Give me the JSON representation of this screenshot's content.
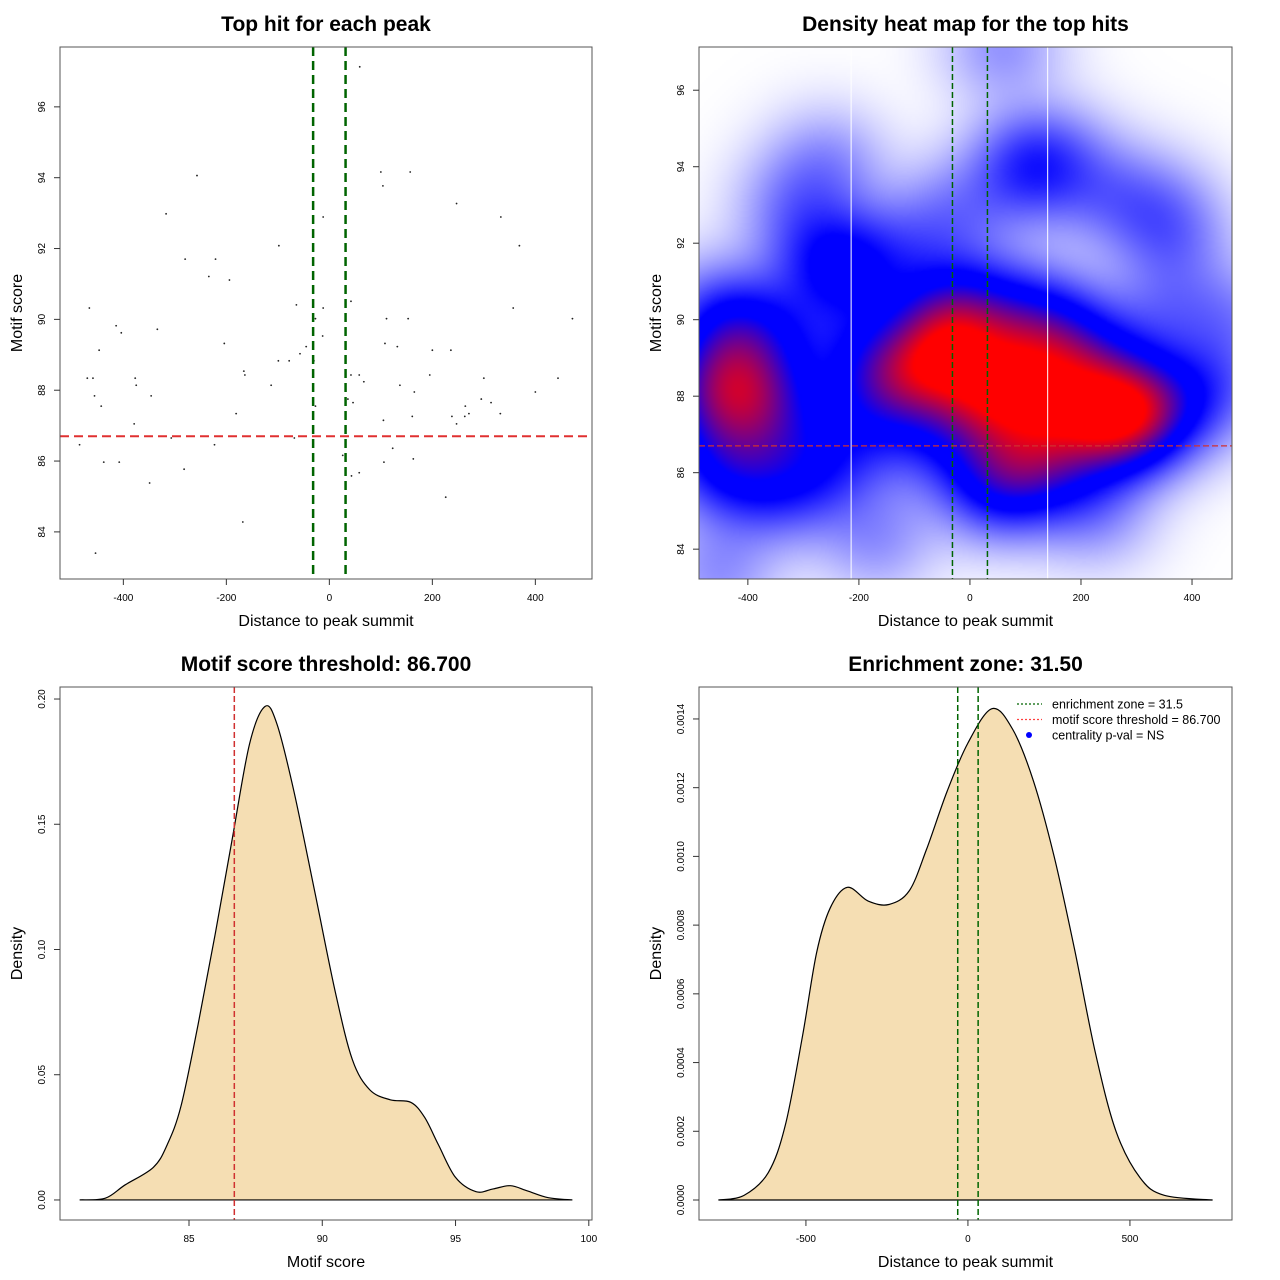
{
  "chart_data": [
    {
      "type": "scatter",
      "title": "Top hit for each peak",
      "xlabel": "Distance to peak summit",
      "ylabel": "Motif score",
      "xlim": [
        -523,
        510
      ],
      "ylim": [
        82.67,
        97.69
      ],
      "xtick_labels": [
        "-400",
        "-200",
        "0",
        "200",
        "400"
      ],
      "ytick_labels": [
        "84",
        "86",
        "88",
        "90",
        "92",
        "94",
        "96"
      ],
      "point_color": "#222222",
      "vlines": {
        "values": [
          -31.5,
          31.5
        ],
        "color": "#006400",
        "style": "dashed"
      },
      "hline": {
        "value": 86.7,
        "color": "#e03030",
        "style": "dashed"
      },
      "points": [
        [
          -257,
          94.06
        ],
        [
          -317,
          92.98
        ],
        [
          -98,
          92.08
        ],
        [
          -280,
          91.7
        ],
        [
          -221,
          91.7
        ],
        [
          -234,
          91.21
        ],
        [
          -194,
          91.11
        ],
        [
          -12,
          92.89
        ],
        [
          -466,
          90.32
        ],
        [
          -64,
          90.41
        ],
        [
          -12,
          90.32
        ],
        [
          -27,
          90.02
        ],
        [
          -13,
          89.53
        ],
        [
          -414,
          89.82
        ],
        [
          -404,
          89.62
        ],
        [
          -334,
          89.72
        ],
        [
          -447,
          89.13
        ],
        [
          -204,
          89.32
        ],
        [
          -45,
          89.23
        ],
        [
          -57,
          89.03
        ],
        [
          -99,
          88.83
        ],
        [
          -78,
          88.83
        ],
        [
          -30,
          88.83
        ],
        [
          -470,
          88.34
        ],
        [
          -459,
          88.34
        ],
        [
          -377,
          88.34
        ],
        [
          -375,
          88.14
        ],
        [
          -166,
          88.54
        ],
        [
          -164,
          88.43
        ],
        [
          -113,
          88.14
        ],
        [
          -456,
          87.84
        ],
        [
          -346,
          87.84
        ],
        [
          -443,
          87.55
        ],
        [
          -27,
          87.55
        ],
        [
          -181,
          87.34
        ],
        [
          -379,
          87.05
        ],
        [
          -307,
          86.65
        ],
        [
          -68,
          86.65
        ],
        [
          -485,
          86.46
        ],
        [
          -223,
          86.46
        ],
        [
          -438,
          85.97
        ],
        [
          -408,
          85.97
        ],
        [
          -282,
          85.77
        ],
        [
          -349,
          85.38
        ],
        [
          -168,
          84.28
        ],
        [
          -454,
          83.4
        ],
        [
          59,
          97.13
        ],
        [
          100,
          94.16
        ],
        [
          157,
          94.16
        ],
        [
          104,
          93.77
        ],
        [
          247,
          93.27
        ],
        [
          333,
          92.89
        ],
        [
          369,
          92.08
        ],
        [
          42,
          90.51
        ],
        [
          357,
          90.32
        ],
        [
          111,
          90.02
        ],
        [
          153,
          90.02
        ],
        [
          472,
          90.02
        ],
        [
          108,
          89.32
        ],
        [
          132,
          89.23
        ],
        [
          200,
          89.13
        ],
        [
          236,
          89.13
        ],
        [
          42,
          88.43
        ],
        [
          58,
          88.43
        ],
        [
          67,
          88.24
        ],
        [
          195,
          88.43
        ],
        [
          300,
          88.34
        ],
        [
          444,
          88.34
        ],
        [
          137,
          88.14
        ],
        [
          165,
          87.95
        ],
        [
          400,
          87.95
        ],
        [
          36,
          87.75
        ],
        [
          46,
          87.65
        ],
        [
          295,
          87.75
        ],
        [
          314,
          87.65
        ],
        [
          264,
          87.55
        ],
        [
          271,
          87.34
        ],
        [
          263,
          87.26
        ],
        [
          238,
          87.26
        ],
        [
          161,
          87.26
        ],
        [
          332,
          87.34
        ],
        [
          247,
          87.05
        ],
        [
          105,
          87.15
        ],
        [
          123,
          86.36
        ],
        [
          26,
          86.16
        ],
        [
          106,
          85.97
        ],
        [
          163,
          86.06
        ],
        [
          58,
          85.67
        ],
        [
          43,
          85.58
        ],
        [
          226,
          84.98
        ]
      ]
    },
    {
      "type": "heatmap",
      "title": "Density heat map for the top hits",
      "xlabel": "Distance to peak summit",
      "ylabel": "Motif score",
      "xlim": [
        -488,
        472
      ],
      "ylim": [
        83.22,
        97.13
      ],
      "xtick_labels": [
        "-400",
        "-200",
        "0",
        "200",
        "400"
      ],
      "ytick_labels": [
        "84",
        "86",
        "88",
        "90",
        "92",
        "94",
        "96"
      ],
      "color_ramp": [
        "#ffffff",
        "#0000ff",
        "#ff0000"
      ],
      "white_vlines": [
        -214,
        140
      ],
      "vlines": {
        "values": [
          -31.5,
          31.5
        ],
        "color": "#006400",
        "style": "dashed"
      },
      "hline": {
        "value": 86.7,
        "color": "#d03030",
        "style": "dashed"
      }
    },
    {
      "type": "area",
      "title": "Motif score threshold: 86.700",
      "xlabel": "Motif score",
      "ylabel": "Density",
      "xlim": [
        80.16,
        100.12
      ],
      "ylim": [
        -0.008,
        0.2048
      ],
      "xtick_labels": [
        "85",
        "90",
        "95",
        "100"
      ],
      "ytick_labels": [
        "0.00",
        "0.05",
        "0.10",
        "0.15",
        "0.20"
      ],
      "fill": "#f5deb3",
      "vlines": {
        "values": [
          86.7
        ],
        "color": "#d03030",
        "style": "dashed"
      },
      "x": [
        80.9,
        81.86,
        82.6,
        83.66,
        84.18,
        84.7,
        85.34,
        85.98,
        86.62,
        87.27,
        87.85,
        88.3,
        88.94,
        89.72,
        90.49,
        91.13,
        91.78,
        92.55,
        93.32,
        93.84,
        94.36,
        95.0,
        95.77,
        96.41,
        97.06,
        97.7,
        98.48,
        99.38
      ],
      "y": [
        0,
        0.0007,
        0.006,
        0.013,
        0.022,
        0.0375,
        0.07,
        0.106,
        0.144,
        0.182,
        0.197,
        0.19,
        0.163,
        0.123,
        0.083,
        0.056,
        0.044,
        0.04,
        0.039,
        0.033,
        0.022,
        0.009,
        0.0033,
        0.0044,
        0.0057,
        0.0036,
        0.0009,
        0
      ]
    },
    {
      "type": "area",
      "title": "Enrichment zone: 31.50",
      "xlabel": "Distance to peak summit",
      "ylabel": "Density",
      "xlim": [
        -830,
        815
      ],
      "ylim": [
        -5.82e-05,
        0.001493
      ],
      "xtick_labels": [
        "-500",
        "0",
        "500"
      ],
      "ytick_labels": [
        "0.0000",
        "0.0002",
        "0.0004",
        "0.0006",
        "0.0008",
        "0.0010",
        "0.0012",
        "0.0014"
      ],
      "fill": "#f5deb3",
      "vlines": {
        "values": [
          -31.5,
          31.5
        ],
        "color": "#006400",
        "style": "dashed"
      },
      "x": [
        -770,
        -691,
        -616,
        -563,
        -510,
        -467,
        -425,
        -372,
        -308,
        -244,
        -181,
        -128,
        -64,
        0,
        74,
        138,
        202,
        266,
        329,
        393,
        457,
        531,
        606,
        755
      ],
      "y": [
        0,
        1.35e-05,
        8e-05,
        0.00022,
        0.00048,
        0.00072,
        0.00085,
        0.00091,
        0.00087,
        0.00086,
        0.0009,
        0.00102,
        0.00119,
        0.00133,
        0.00143,
        0.00137,
        0.00122,
        0.001,
        0.00073,
        0.00043,
        0.0002,
        6.5e-05,
        1.35e-05,
        0
      ],
      "legend": [
        {
          "label": "enrichment zone = 31.5",
          "color": "#006400",
          "symbol": "dotted-line"
        },
        {
          "label": "motif score threshold = 86.700",
          "color": "#ff4040",
          "symbol": "dotted-line"
        },
        {
          "label": "centrality p-val = NS",
          "color": "#0000ff",
          "symbol": "dot"
        }
      ]
    }
  ]
}
